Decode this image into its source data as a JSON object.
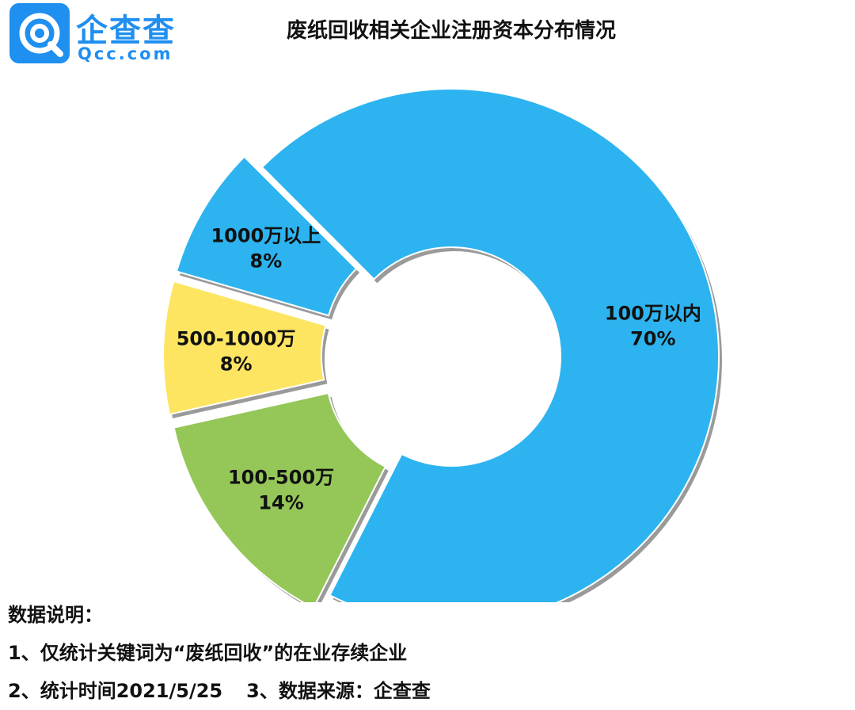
{
  "logo": {
    "text_cn": "企查查",
    "text_en": "Qcc.com",
    "color": "#1f8ff0"
  },
  "chart_data": {
    "type": "pie",
    "title": "废纸回收相关企业注册资本分布情况",
    "donut": true,
    "slices": [
      {
        "label": "100万以内",
        "value": 70,
        "value_label": "70%",
        "color": "#2db4f0",
        "exploded": false
      },
      {
        "label": "100-500万",
        "value": 14,
        "value_label": "14%",
        "color": "#95c758",
        "exploded": true
      },
      {
        "label": "500-1000万",
        "value": 8,
        "value_label": "8%",
        "color": "#fde562",
        "exploded": true
      },
      {
        "label": "1000万以上",
        "value": 8,
        "value_label": "8%",
        "color": "#2db4f0",
        "exploded": true
      }
    ]
  },
  "notes": {
    "heading": "数据说明：",
    "line1": "1、仅统计关键词为“废纸回收”的在业存续企业",
    "line2": "2、统计时间2021/5/25",
    "line3": "3、数据来源：企查查"
  }
}
